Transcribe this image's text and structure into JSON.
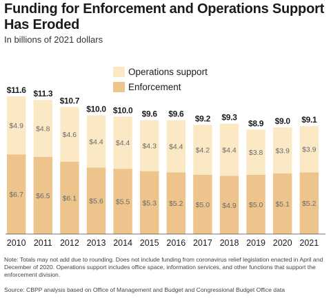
{
  "title": "Funding for Enforcement and Operations Support Has Eroded",
  "subtitle": "In billions of 2021 dollars",
  "note": "Note: Totals may not add due to rounding. Does not include funding from coronavirus relief legislation enacted in April and December of 2020. Operations support includes office space, information services, and other functions that support the enforcement division.",
  "source": "Source: CBPP analysis based on Office of Management and Budget and Congressional Budget Office data",
  "chart_data": {
    "type": "bar",
    "stacked": true,
    "categories": [
      "2010",
      "2011",
      "2012",
      "2013",
      "2014",
      "2015",
      "2016",
      "2017",
      "2018",
      "2019",
      "2020",
      "2021"
    ],
    "series": [
      {
        "name": "Enforcement",
        "color": "#edc48b",
        "values": [
          6.7,
          6.5,
          6.1,
          5.6,
          5.5,
          5.3,
          5.2,
          5.0,
          4.9,
          5.0,
          5.1,
          5.2
        ],
        "labels": [
          "$6.7",
          "$6.5",
          "$6.1",
          "$5.6",
          "$5.5",
          "$5.3",
          "$5.2",
          "$5.0",
          "$4.9",
          "$5.0",
          "$5.1",
          "$5.2"
        ]
      },
      {
        "name": "Operations support",
        "color": "#fbe9c6",
        "values": [
          4.9,
          4.8,
          4.6,
          4.4,
          4.4,
          4.3,
          4.4,
          4.2,
          4.4,
          3.8,
          3.9,
          3.9
        ],
        "labels": [
          "$4.9",
          "$4.8",
          "$4.6",
          "$4.4",
          "$4.4",
          "$4.3",
          "$4.4",
          "$4.2",
          "$4.4",
          "$3.8",
          "$3.9",
          "$3.9"
        ]
      }
    ],
    "totals": [
      11.6,
      11.3,
      10.7,
      10.0,
      10.0,
      9.6,
      9.6,
      9.2,
      9.3,
      8.9,
      9.0,
      9.1
    ],
    "total_labels": [
      "$11.6",
      "$11.3",
      "$10.7",
      "$10.0",
      "$10.0",
      "$9.6",
      "$9.6",
      "$9.2",
      "$9.3",
      "$8.9",
      "$9.0",
      "$9.1"
    ],
    "ylim": [
      0,
      11.6
    ],
    "grid": false,
    "legend_position": "top-center"
  }
}
